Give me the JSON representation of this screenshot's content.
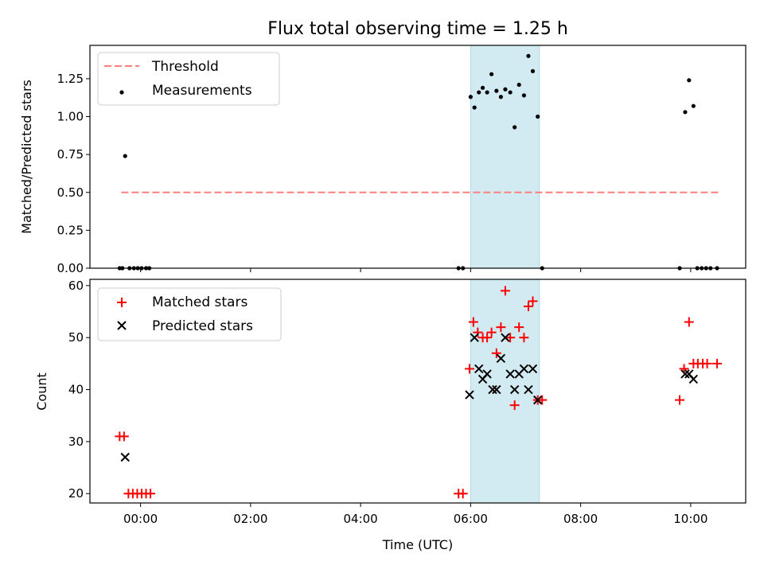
{
  "chart_data": [
    {
      "type": "scatter",
      "title": "Flux total observing time = 1.25 h",
      "xlabel": "",
      "ylabel": "Matched/Predicted stars",
      "xlim_hours": [
        -0.92,
        11.0
      ],
      "ylim": [
        0.0,
        1.47
      ],
      "yticks": [
        0.0,
        0.25,
        0.5,
        0.75,
        1.0,
        1.25
      ],
      "ytick_labels": [
        "0.00",
        "0.25",
        "0.50",
        "0.75",
        "1.00",
        "1.25"
      ],
      "xticks_hours": [
        0,
        2,
        4,
        6,
        8,
        10
      ],
      "shaded_span_hours": [
        6.0,
        7.25
      ],
      "shade_color": "#add8e6",
      "legend": [
        "Threshold",
        "Measurements"
      ],
      "threshold": {
        "name": "Threshold",
        "y": 0.5,
        "x_range_hours": [
          -0.35,
          10.5
        ],
        "color": "#ff7f7f"
      },
      "measurements": {
        "name": "Measurements",
        "color": "#000000",
        "points": [
          [
            -0.38,
            0.0
          ],
          [
            -0.33,
            0.0
          ],
          [
            -0.2,
            0.0
          ],
          [
            -0.12,
            0.0
          ],
          [
            -0.05,
            0.0
          ],
          [
            0.02,
            0.0
          ],
          [
            0.1,
            0.0
          ],
          [
            0.16,
            0.0
          ],
          [
            -0.28,
            0.74
          ],
          [
            5.78,
            0.0
          ],
          [
            5.86,
            0.0
          ],
          [
            6.0,
            1.13
          ],
          [
            6.07,
            1.06
          ],
          [
            6.15,
            1.16
          ],
          [
            6.22,
            1.19
          ],
          [
            6.3,
            1.16
          ],
          [
            6.38,
            1.28
          ],
          [
            6.47,
            1.17
          ],
          [
            6.55,
            1.13
          ],
          [
            6.63,
            1.18
          ],
          [
            6.72,
            1.16
          ],
          [
            6.8,
            0.93
          ],
          [
            6.88,
            1.21
          ],
          [
            6.97,
            1.14
          ],
          [
            7.05,
            1.4
          ],
          [
            7.13,
            1.3
          ],
          [
            7.22,
            1.0
          ],
          [
            7.3,
            0.0
          ],
          [
            9.8,
            0.0
          ],
          [
            9.9,
            1.03
          ],
          [
            9.97,
            1.24
          ],
          [
            10.05,
            1.07
          ],
          [
            10.12,
            0.0
          ],
          [
            10.2,
            0.0
          ],
          [
            10.28,
            0.0
          ],
          [
            10.36,
            0.0
          ],
          [
            10.48,
            0.0
          ]
        ]
      }
    },
    {
      "type": "scatter",
      "title": "",
      "xlabel": "Time (UTC)",
      "ylabel": "Count",
      "xlim_hours": [
        -0.92,
        11.0
      ],
      "ylim": [
        18.2,
        61.2
      ],
      "yticks": [
        20,
        30,
        40,
        50,
        60
      ],
      "ytick_labels": [
        "20",
        "30",
        "40",
        "50",
        "60"
      ],
      "xticks_hours": [
        0,
        2,
        4,
        6,
        8,
        10
      ],
      "xtick_labels": [
        "00:00",
        "02:00",
        "04:00",
        "06:00",
        "08:00",
        "10:00"
      ],
      "shaded_span_hours": [
        6.0,
        7.25
      ],
      "shade_color": "#add8e6",
      "legend": [
        "Matched stars",
        "Predicted stars"
      ],
      "series": [
        {
          "name": "Matched stars",
          "marker": "+",
          "color": "#ff0000",
          "points": [
            [
              -0.38,
              31
            ],
            [
              -0.3,
              31
            ],
            [
              -0.22,
              20
            ],
            [
              -0.14,
              20
            ],
            [
              -0.06,
              20
            ],
            [
              0.02,
              20
            ],
            [
              0.1,
              20
            ],
            [
              0.18,
              20
            ],
            [
              5.78,
              20
            ],
            [
              5.86,
              20
            ],
            [
              5.98,
              44
            ],
            [
              6.05,
              53
            ],
            [
              6.13,
              51
            ],
            [
              6.22,
              50
            ],
            [
              6.3,
              50
            ],
            [
              6.38,
              51
            ],
            [
              6.47,
              47
            ],
            [
              6.55,
              52
            ],
            [
              6.63,
              59
            ],
            [
              6.72,
              50
            ],
            [
              6.8,
              37
            ],
            [
              6.88,
              52
            ],
            [
              6.97,
              50
            ],
            [
              7.05,
              56
            ],
            [
              7.13,
              57
            ],
            [
              7.22,
              38
            ],
            [
              7.3,
              38
            ],
            [
              9.8,
              38
            ],
            [
              9.88,
              44
            ],
            [
              9.97,
              53
            ],
            [
              10.05,
              45
            ],
            [
              10.13,
              45
            ],
            [
              10.22,
              45
            ],
            [
              10.3,
              45
            ],
            [
              10.48,
              45
            ]
          ]
        },
        {
          "name": "Predicted stars",
          "marker": "x",
          "color": "#000000",
          "points": [
            [
              -0.28,
              27
            ],
            [
              5.98,
              39
            ],
            [
              6.07,
              50
            ],
            [
              6.15,
              44
            ],
            [
              6.22,
              42
            ],
            [
              6.3,
              43
            ],
            [
              6.4,
              40
            ],
            [
              6.47,
              40
            ],
            [
              6.55,
              46
            ],
            [
              6.63,
              50
            ],
            [
              6.72,
              43
            ],
            [
              6.8,
              40
            ],
            [
              6.88,
              43
            ],
            [
              6.97,
              44
            ],
            [
              7.05,
              40
            ],
            [
              7.13,
              44
            ],
            [
              7.22,
              38
            ],
            [
              9.9,
              43
            ],
            [
              9.97,
              43
            ],
            [
              10.05,
              42
            ]
          ]
        }
      ]
    }
  ]
}
